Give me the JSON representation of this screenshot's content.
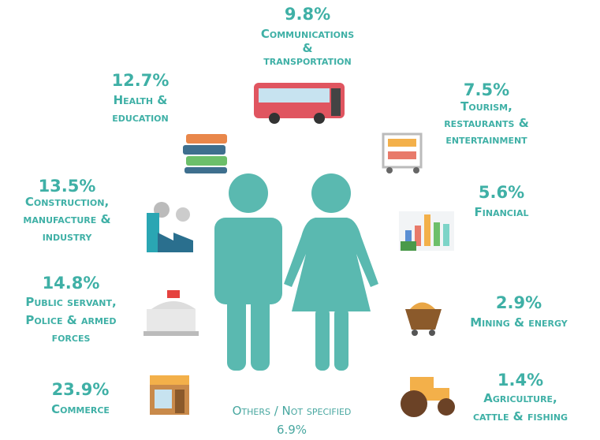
{
  "items": [
    {
      "percent": "9.8%",
      "lines": [
        "Communications",
        "&",
        "transportation"
      ]
    },
    {
      "percent": "12.7%",
      "lines": [
        "Health &",
        "education"
      ]
    },
    {
      "percent": "7.5%",
      "lines": [
        "Tourism,",
        "restaurants &",
        "entertainment"
      ]
    },
    {
      "percent": "13.5%",
      "lines": [
        "Construction,",
        "manufacture &",
        "industry"
      ]
    },
    {
      "percent": "5.6%",
      "lines": [
        "Financial"
      ]
    },
    {
      "percent": "14.8%",
      "lines": [
        "Public servant,",
        "Police & armed",
        "forces"
      ]
    },
    {
      "percent": "2.9%",
      "lines": [
        "Mining & energy"
      ]
    },
    {
      "percent": "23.9%",
      "lines": [
        "Commerce"
      ]
    },
    {
      "percent": "1.4%",
      "lines": [
        "Agriculture,",
        "cattle & fishing"
      ]
    }
  ],
  "others": {
    "label": "Others / Not specified",
    "percent": "6.9%"
  }
}
